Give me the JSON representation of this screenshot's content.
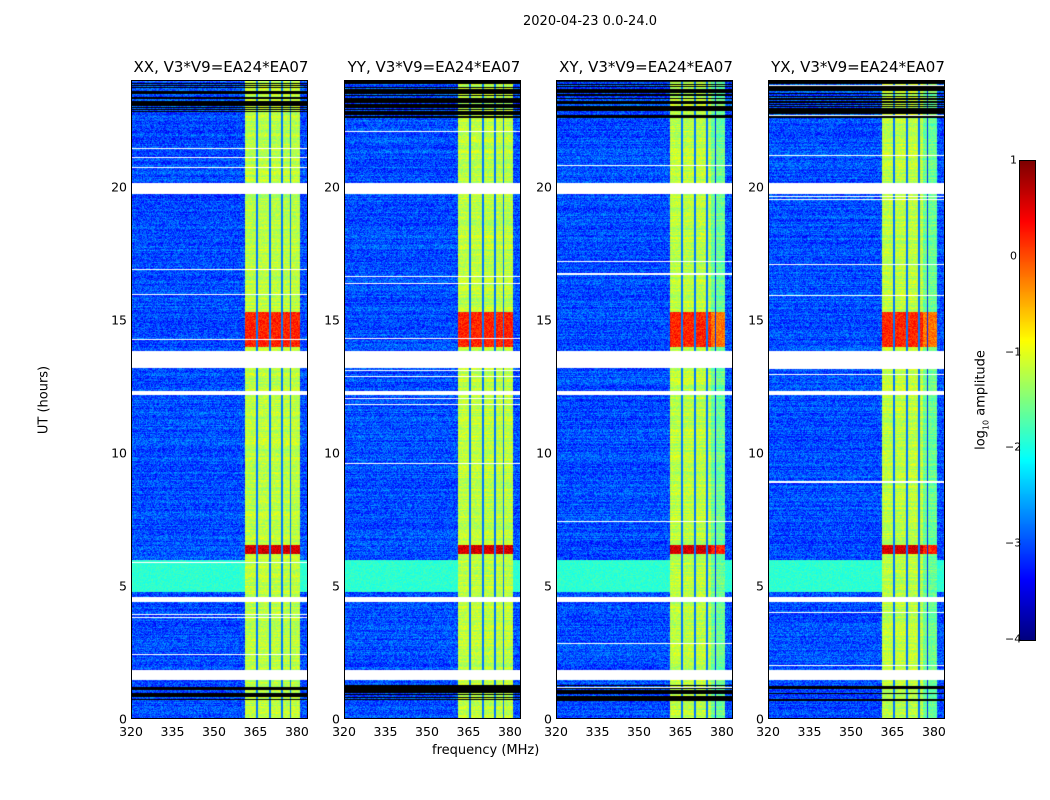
{
  "chart_data": {
    "type": "heatmap",
    "title": "2020-04-23 0.0-24.0",
    "xlabel": "frequency (MHz)",
    "ylabel": "UT (hours)",
    "xlim": [
      320,
      384
    ],
    "ylim": [
      0,
      24
    ],
    "xticks": [
      "320",
      "335",
      "350",
      "365",
      "380"
    ],
    "xtick_values": [
      320,
      335,
      350,
      365,
      380
    ],
    "yticks": [
      "0",
      "5",
      "10",
      "15",
      "20"
    ],
    "ytick_values": [
      0,
      5,
      10,
      15,
      20
    ],
    "panels": [
      {
        "title": "XX, V3*V9=EA24*EA07"
      },
      {
        "title": "YY, V3*V9=EA24*EA07"
      },
      {
        "title": "XY, V3*V9=EA24*EA07"
      },
      {
        "title": "YX, V3*V9=EA24*EA07"
      }
    ],
    "colorbar": {
      "label": "log10 amplitude",
      "label_main": "log",
      "label_sub": "10",
      "label_rest": " amplitude",
      "range": [
        -4,
        1
      ],
      "ticks": [
        "1",
        "0",
        "−1",
        "−2",
        "−3",
        "−4"
      ],
      "tick_values": [
        1,
        0,
        -1,
        -2,
        -3,
        -4
      ],
      "colormap": "jet"
    },
    "background_log_amplitude": -3.0,
    "rfi_band_MHz": [
      361,
      381
    ],
    "rfi_band_log_amplitude": -1.2,
    "rfi_channel_gaps_MHz": [
      365.5,
      370,
      374.5,
      377.5
    ],
    "flagged_white_hours": [
      [
        19.75,
        20.15
      ],
      [
        13.2,
        13.85
      ],
      [
        4.4,
        4.6
      ],
      [
        1.5,
        1.85
      ],
      [
        12.2,
        12.35
      ]
    ],
    "flagged_black_hours": [
      [
        22.6,
        24.0
      ],
      [
        0.7,
        1.3
      ]
    ],
    "bright_events": [
      {
        "hours": [
          6.2,
          6.55
        ],
        "log_amplitude": 0.6
      },
      {
        "hours": [
          14.0,
          15.3
        ],
        "log_amplitude": 0.2
      },
      {
        "hours": [
          4.8,
          6.0
        ],
        "log_amplitude": -1.9,
        "note": "broadband"
      }
    ]
  }
}
